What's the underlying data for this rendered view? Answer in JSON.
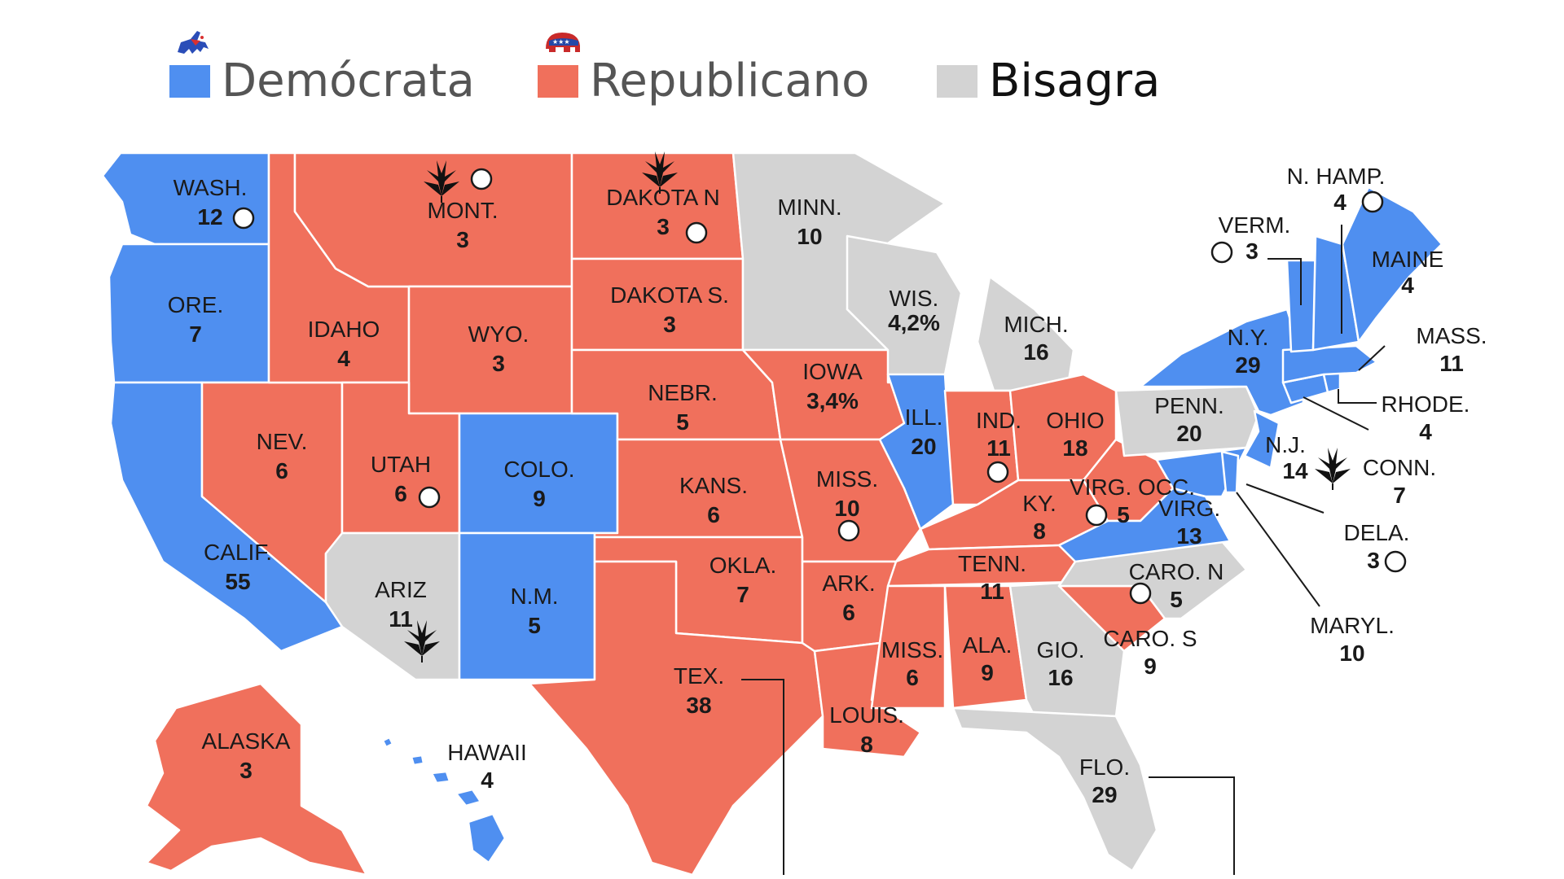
{
  "colors": {
    "democrat": "#4f8ff0",
    "republican": "#f0705c",
    "swing": "#d3d3d3",
    "border": "#ffffff",
    "text": "#1a1a1a"
  },
  "legend": {
    "democrat": {
      "label": "Demócrata",
      "icon": "donkey-icon"
    },
    "republican": {
      "label": "Republicano",
      "icon": "elephant-icon"
    },
    "swing": {
      "label": "Bisagra"
    }
  },
  "states": {
    "wash": {
      "abbr": "WASH.",
      "value": "12",
      "party": "democrat"
    },
    "ore": {
      "abbr": "ORE.",
      "value": "7",
      "party": "democrat"
    },
    "calif": {
      "abbr": "CALIF.",
      "value": "55",
      "party": "democrat"
    },
    "nev": {
      "abbr": "NEV.",
      "value": "6",
      "party": "republican"
    },
    "idaho": {
      "abbr": "IDAHO",
      "value": "4",
      "party": "republican"
    },
    "mont": {
      "abbr": "MONT.",
      "value": "3",
      "party": "republican"
    },
    "wyo": {
      "abbr": "WYO.",
      "value": "3",
      "party": "republican"
    },
    "utah": {
      "abbr": "UTAH",
      "value": "6",
      "party": "republican"
    },
    "ariz": {
      "abbr": "ARIZ",
      "value": "11",
      "party": "swing"
    },
    "colo": {
      "abbr": "COLO.",
      "value": "9",
      "party": "democrat"
    },
    "nm": {
      "abbr": "N.M.",
      "value": "5",
      "party": "democrat"
    },
    "dakn": {
      "abbr": "DAKOTA N",
      "value": "3",
      "party": "republican"
    },
    "daks": {
      "abbr": "DAKOTA S.",
      "value": "3",
      "party": "republican"
    },
    "nebr": {
      "abbr": "NEBR.",
      "value": "5",
      "party": "republican"
    },
    "kans": {
      "abbr": "KANS.",
      "value": "6",
      "party": "republican"
    },
    "okla": {
      "abbr": "OKLA.",
      "value": "7",
      "party": "republican"
    },
    "tex": {
      "abbr": "TEX.",
      "value": "38",
      "party": "republican"
    },
    "minn": {
      "abbr": "MINN.",
      "value": "10",
      "party": "swing"
    },
    "iowa": {
      "abbr": "IOWA",
      "value": "3,4%",
      "party": "republican"
    },
    "miss_mo": {
      "abbr": "MISS.",
      "value": "10",
      "party": "republican"
    },
    "ark": {
      "abbr": "ARK.",
      "value": "6",
      "party": "republican"
    },
    "louis": {
      "abbr": "LOUIS.",
      "value": "8",
      "party": "republican"
    },
    "wis": {
      "abbr": "WIS.",
      "value": "4,2%",
      "party": "swing"
    },
    "ill": {
      "abbr": "ILL.",
      "value": "20",
      "party": "democrat"
    },
    "mich": {
      "abbr": "MICH.",
      "value": "16",
      "party": "swing"
    },
    "ind": {
      "abbr": "IND.",
      "value": "11",
      "party": "republican"
    },
    "ohio": {
      "abbr": "OHIO",
      "value": "18",
      "party": "republican"
    },
    "ky": {
      "abbr": "KY.",
      "value": "8",
      "party": "republican"
    },
    "tenn": {
      "abbr": "TENN.",
      "value": "11",
      "party": "republican"
    },
    "miss": {
      "abbr": "MISS.",
      "value": "6",
      "party": "republican"
    },
    "ala": {
      "abbr": "ALA.",
      "value": "9",
      "party": "republican"
    },
    "gio": {
      "abbr": "GIO.",
      "value": "16",
      "party": "swing"
    },
    "flo": {
      "abbr": "FLO.",
      "value": "29",
      "party": "swing"
    },
    "caros": {
      "abbr": "CARO. S",
      "value": "9",
      "party": "republican"
    },
    "caron": {
      "abbr": "CARO. N",
      "value": "5",
      "party": "swing"
    },
    "virg": {
      "abbr": "VIRG.",
      "value": "13",
      "party": "democrat"
    },
    "virgocc": {
      "abbr": "VIRG. OCC.",
      "value": "5",
      "party": "republican"
    },
    "penn": {
      "abbr": "PENN.",
      "value": "20",
      "party": "swing"
    },
    "ny": {
      "abbr": "N.Y.",
      "value": "29",
      "party": "democrat"
    },
    "nj": {
      "abbr": "N.J.",
      "value": "14",
      "party": "democrat"
    },
    "verm": {
      "abbr": "VERM.",
      "value": "3",
      "party": "democrat"
    },
    "nhamp": {
      "abbr": "N. HAMP.",
      "value": "4",
      "party": "democrat"
    },
    "maine": {
      "abbr": "MAINE",
      "value": "4",
      "party": "democrat"
    },
    "mass": {
      "abbr": "MASS.",
      "value": "11",
      "party": "democrat"
    },
    "rhode": {
      "abbr": "RHODE.",
      "value": "4",
      "party": "democrat"
    },
    "conn": {
      "abbr": "CONN.",
      "value": "7",
      "party": "democrat"
    },
    "dela": {
      "abbr": "DELA.",
      "value": "3",
      "party": "democrat"
    },
    "maryl": {
      "abbr": "MARYL.",
      "value": "10",
      "party": "democrat"
    },
    "alaska": {
      "abbr": "ALASKA",
      "value": "3",
      "party": "republican"
    },
    "hawaii": {
      "abbr": "HAWAII",
      "value": "4",
      "party": "democrat"
    }
  },
  "marker_icons": {
    "circle": "circle-marker-icon",
    "leaf": "cannabis-leaf-icon"
  }
}
